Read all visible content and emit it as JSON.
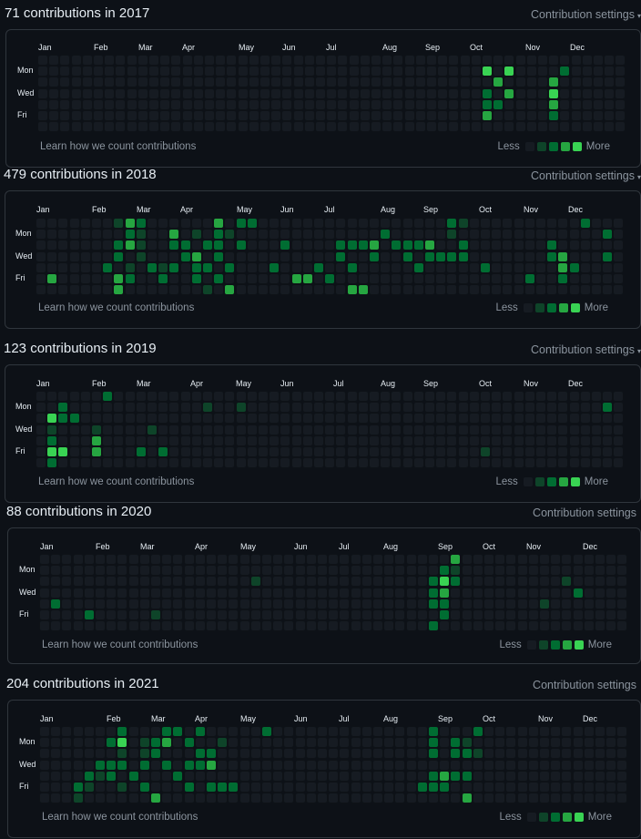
{
  "colors": {
    "background": "#0d1117",
    "border": "#30363d",
    "level0": "#161b22",
    "level1": "#0e4429",
    "level2": "#006d32",
    "level3": "#26a641",
    "level4": "#39d353",
    "muted_text": "#8b949e"
  },
  "common": {
    "settings_label": "Contribution settings",
    "learn_label": "Learn how we count contributions",
    "less_label": "Less",
    "more_label": "More",
    "day_labels": [
      "Mon",
      "Wed",
      "Fri"
    ]
  },
  "years": [
    {
      "title": "71 contributions in 2017",
      "show_caret": true,
      "months": [
        "Jan",
        "Feb",
        "Mar",
        "Apr",
        "May",
        "Jun",
        "Jul",
        "Aug",
        "Sep",
        "Oct",
        "Nov",
        "Dec"
      ],
      "active_cells": [
        [
          40,
          1,
          4
        ],
        [
          42,
          1,
          4
        ],
        [
          41,
          2,
          3
        ],
        [
          40,
          3,
          2
        ],
        [
          42,
          3,
          3
        ],
        [
          40,
          4,
          2
        ],
        [
          41,
          4,
          2
        ],
        [
          40,
          5,
          3
        ],
        [
          46,
          2,
          3
        ],
        [
          47,
          1,
          2
        ],
        [
          46,
          3,
          4
        ],
        [
          46,
          4,
          3
        ],
        [
          46,
          5,
          2
        ]
      ]
    },
    {
      "title": "479 contributions in 2018",
      "show_caret": true,
      "months": [
        "Jan",
        "Feb",
        "Mar",
        "Apr",
        "May",
        "Jun",
        "Jul",
        "Aug",
        "Sep",
        "Oct",
        "Nov",
        "Dec"
      ],
      "active_cells": [
        [
          1,
          5,
          3
        ],
        [
          6,
          4,
          2
        ],
        [
          7,
          0,
          1
        ],
        [
          7,
          2,
          2
        ],
        [
          7,
          3,
          2
        ],
        [
          7,
          5,
          3
        ],
        [
          7,
          6,
          3
        ],
        [
          8,
          0,
          3
        ],
        [
          8,
          1,
          2
        ],
        [
          8,
          2,
          3
        ],
        [
          8,
          4,
          1
        ],
        [
          8,
          5,
          2
        ],
        [
          9,
          0,
          2
        ],
        [
          9,
          1,
          1
        ],
        [
          9,
          2,
          1
        ],
        [
          9,
          3,
          1
        ],
        [
          10,
          4,
          2
        ],
        [
          11,
          4,
          1
        ],
        [
          11,
          5,
          2
        ],
        [
          12,
          1,
          3
        ],
        [
          12,
          2,
          2
        ],
        [
          12,
          4,
          2
        ],
        [
          13,
          2,
          2
        ],
        [
          13,
          3,
          2
        ],
        [
          14,
          1,
          1
        ],
        [
          14,
          3,
          3
        ],
        [
          14,
          4,
          2
        ],
        [
          14,
          5,
          2
        ],
        [
          15,
          2,
          2
        ],
        [
          15,
          4,
          2
        ],
        [
          15,
          6,
          1
        ],
        [
          16,
          0,
          3
        ],
        [
          16,
          1,
          2
        ],
        [
          16,
          2,
          2
        ],
        [
          16,
          3,
          2
        ],
        [
          16,
          5,
          2
        ],
        [
          17,
          1,
          1
        ],
        [
          17,
          4,
          2
        ],
        [
          17,
          6,
          3
        ],
        [
          18,
          0,
          2
        ],
        [
          18,
          2,
          2
        ],
        [
          19,
          0,
          2
        ],
        [
          21,
          4,
          2
        ],
        [
          22,
          2,
          2
        ],
        [
          23,
          5,
          3
        ],
        [
          24,
          5,
          3
        ],
        [
          25,
          4,
          2
        ],
        [
          26,
          5,
          2
        ],
        [
          27,
          2,
          2
        ],
        [
          27,
          3,
          2
        ],
        [
          28,
          2,
          2
        ],
        [
          28,
          4,
          2
        ],
        [
          28,
          6,
          3
        ],
        [
          29,
          2,
          2
        ],
        [
          29,
          6,
          3
        ],
        [
          30,
          2,
          3
        ],
        [
          30,
          3,
          2
        ],
        [
          31,
          1,
          2
        ],
        [
          32,
          2,
          2
        ],
        [
          33,
          2,
          2
        ],
        [
          33,
          3,
          2
        ],
        [
          34,
          2,
          2
        ],
        [
          34,
          4,
          2
        ],
        [
          35,
          2,
          3
        ],
        [
          35,
          3,
          2
        ],
        [
          36,
          3,
          2
        ],
        [
          37,
          0,
          2
        ],
        [
          37,
          1,
          1
        ],
        [
          37,
          3,
          2
        ],
        [
          38,
          0,
          1
        ],
        [
          38,
          2,
          2
        ],
        [
          38,
          3,
          2
        ],
        [
          40,
          4,
          2
        ],
        [
          44,
          5,
          2
        ],
        [
          46,
          2,
          2
        ],
        [
          46,
          3,
          2
        ],
        [
          47,
          3,
          3
        ],
        [
          47,
          4,
          3
        ],
        [
          47,
          5,
          2
        ],
        [
          48,
          4,
          2
        ],
        [
          49,
          0,
          2
        ],
        [
          51,
          1,
          2
        ],
        [
          51,
          3,
          2
        ]
      ]
    },
    {
      "title": "123 contributions in 2019",
      "show_caret": true,
      "months": [
        "Jan",
        "Feb",
        "Mar",
        "Apr",
        "May",
        "Jun",
        "Jul",
        "Aug",
        "Sep",
        "Oct",
        "Nov",
        "Dec"
      ],
      "active_cells": [
        [
          1,
          2,
          4
        ],
        [
          1,
          3,
          1
        ],
        [
          1,
          4,
          2
        ],
        [
          1,
          5,
          4
        ],
        [
          1,
          6,
          2
        ],
        [
          2,
          1,
          2
        ],
        [
          2,
          2,
          2
        ],
        [
          2,
          5,
          4
        ],
        [
          3,
          2,
          2
        ],
        [
          5,
          3,
          1
        ],
        [
          5,
          4,
          3
        ],
        [
          5,
          5,
          3
        ],
        [
          6,
          0,
          2
        ],
        [
          9,
          5,
          2
        ],
        [
          10,
          3,
          1
        ],
        [
          11,
          5,
          2
        ],
        [
          15,
          1,
          1
        ],
        [
          18,
          1,
          1
        ],
        [
          40,
          5,
          1
        ],
        [
          51,
          1,
          2
        ]
      ]
    },
    {
      "title": "88 contributions in 2020",
      "show_caret": false,
      "months": [
        "Jan",
        "Feb",
        "Mar",
        "Apr",
        "May",
        "Jun",
        "Jul",
        "Aug",
        "Sep",
        "Oct",
        "Nov",
        "Dec"
      ],
      "active_cells": [
        [
          1,
          4,
          2
        ],
        [
          4,
          5,
          2
        ],
        [
          10,
          5,
          1
        ],
        [
          19,
          2,
          1
        ],
        [
          35,
          2,
          2
        ],
        [
          35,
          3,
          2
        ],
        [
          35,
          4,
          2
        ],
        [
          35,
          6,
          2
        ],
        [
          36,
          1,
          2
        ],
        [
          36,
          2,
          4
        ],
        [
          36,
          3,
          3
        ],
        [
          36,
          4,
          2
        ],
        [
          36,
          5,
          2
        ],
        [
          37,
          0,
          3
        ],
        [
          37,
          1,
          1
        ],
        [
          37,
          2,
          2
        ],
        [
          45,
          4,
          1
        ],
        [
          47,
          2,
          1
        ],
        [
          48,
          3,
          2
        ]
      ]
    },
    {
      "title": "204 contributions in 2021",
      "show_caret": false,
      "months": [
        "Jan",
        "Feb",
        "Mar",
        "Apr",
        "May",
        "Jun",
        "Jul",
        "Aug",
        "Sep",
        "Oct",
        "Nov",
        "Dec"
      ],
      "active_cells": [
        [
          3,
          5,
          2
        ],
        [
          3,
          6,
          1
        ],
        [
          4,
          4,
          2
        ],
        [
          4,
          5,
          1
        ],
        [
          5,
          3,
          2
        ],
        [
          5,
          4,
          1
        ],
        [
          6,
          1,
          2
        ],
        [
          6,
          3,
          2
        ],
        [
          6,
          4,
          2
        ],
        [
          7,
          0,
          2
        ],
        [
          7,
          1,
          4
        ],
        [
          7,
          2,
          1
        ],
        [
          7,
          3,
          2
        ],
        [
          7,
          5,
          1
        ],
        [
          8,
          4,
          2
        ],
        [
          9,
          1,
          1
        ],
        [
          9,
          2,
          1
        ],
        [
          9,
          3,
          2
        ],
        [
          9,
          5,
          2
        ],
        [
          10,
          1,
          2
        ],
        [
          10,
          2,
          2
        ],
        [
          10,
          6,
          3
        ],
        [
          11,
          0,
          2
        ],
        [
          11,
          1,
          3
        ],
        [
          11,
          3,
          2
        ],
        [
          12,
          0,
          2
        ],
        [
          12,
          4,
          2
        ],
        [
          13,
          1,
          2
        ],
        [
          13,
          3,
          2
        ],
        [
          13,
          5,
          2
        ],
        [
          14,
          0,
          2
        ],
        [
          14,
          2,
          2
        ],
        [
          14,
          3,
          2
        ],
        [
          15,
          2,
          2
        ],
        [
          15,
          3,
          3
        ],
        [
          15,
          5,
          2
        ],
        [
          16,
          1,
          1
        ],
        [
          16,
          5,
          2
        ],
        [
          17,
          5,
          2
        ],
        [
          20,
          0,
          2
        ],
        [
          34,
          5,
          2
        ],
        [
          35,
          0,
          2
        ],
        [
          35,
          1,
          2
        ],
        [
          35,
          2,
          2
        ],
        [
          35,
          4,
          2
        ],
        [
          35,
          5,
          2
        ],
        [
          36,
          4,
          3
        ],
        [
          36,
          5,
          2
        ],
        [
          37,
          1,
          2
        ],
        [
          37,
          2,
          2
        ],
        [
          37,
          4,
          2
        ],
        [
          38,
          1,
          1
        ],
        [
          38,
          2,
          2
        ],
        [
          38,
          4,
          2
        ],
        [
          38,
          6,
          3
        ],
        [
          39,
          0,
          2
        ],
        [
          39,
          2,
          1
        ]
      ]
    }
  ]
}
